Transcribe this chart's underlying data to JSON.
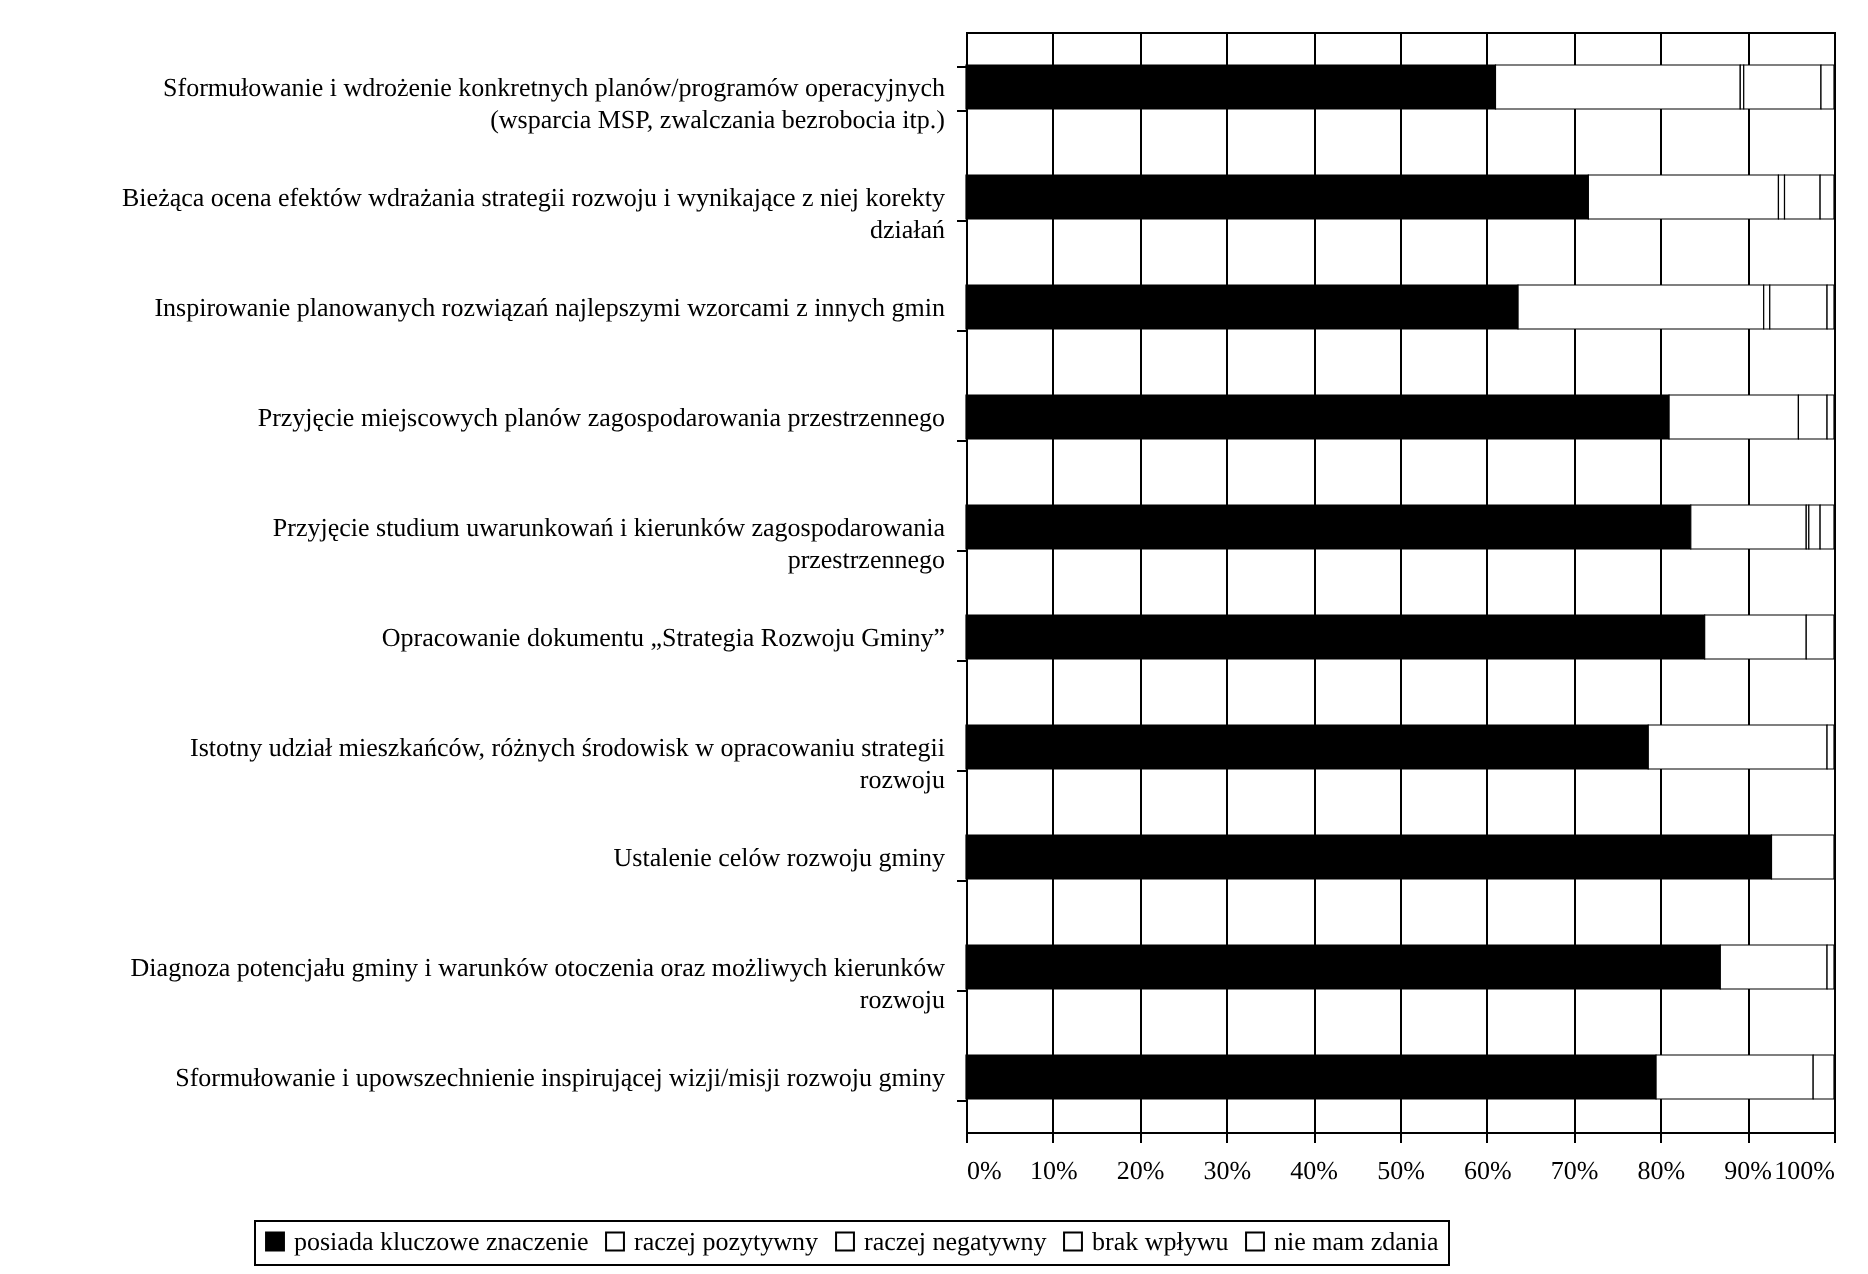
{
  "chart_data": {
    "type": "bar",
    "orientation": "horizontal",
    "stacked": true,
    "categories": [
      "Sformułowanie i wdrożenie  konkretnych planów/programów operacyjnych (wsparcia MSP, zwalczania bezrobocia itp.)",
      "Bieżąca ocena efektów wdrażania strategii rozwoju i wynikające z niej korekty działań",
      "Inspirowanie planowanych rozwiązań najlepszymi wzorcami z innych gmin",
      "Przyjęcie miejscowych planów zagospodarowania przestrzennego",
      "Przyjęcie studium uwarunkowań i kierunków zagospodarowania przestrzennego",
      "Opracowanie dokumentu „Strategia Rozwoju Gminy”",
      "Istotny udział mieszkańców, różnych środowisk w opracowaniu strategii rozwoju",
      "Ustalenie celów rozwoju gminy",
      "Diagnoza potencjału gminy i warunków otoczenia oraz możliwych kierunków rozwoju",
      "Sformułowanie i upowszechnienie inspirującej wizji/misji rozwoju gminy"
    ],
    "series": [
      {
        "name": "posiada kluczowe znaczenie",
        "color": "#000000",
        "values": [
          61.0,
          71.7,
          63.6,
          81.0,
          83.5,
          85.1,
          78.6,
          92.8,
          86.9,
          79.5
        ]
      },
      {
        "name": "raczej pozytywny",
        "color": "#ffffff",
        "values": [
          28.2,
          21.9,
          28.3,
          14.9,
          13.3,
          11.7,
          20.6,
          7.2,
          12.3,
          18.1
        ]
      },
      {
        "name": "raczej negatywny",
        "color": "#ffffff",
        "values": [
          0.4,
          0.7,
          0.7,
          0,
          0.3,
          0,
          0,
          0,
          0,
          0
        ]
      },
      {
        "name": "brak wpływu",
        "color": "#ffffff",
        "values": [
          8.9,
          4.1,
          6.6,
          3.3,
          1.3,
          3.2,
          0.8,
          0,
          0.8,
          2.4
        ]
      },
      {
        "name": "nie mam zdania",
        "color": "#ffffff",
        "values": [
          1.5,
          1.6,
          0.8,
          0.8,
          1.6,
          0,
          0,
          0,
          0,
          0
        ]
      }
    ],
    "xlim": [
      0,
      100
    ],
    "xticks": [
      {
        "value": 0,
        "label": "0%"
      },
      {
        "value": 10,
        "label": "10%"
      },
      {
        "value": 20,
        "label": "20%"
      },
      {
        "value": 30,
        "label": "30%"
      },
      {
        "value": 40,
        "label": "40%"
      },
      {
        "value": 50,
        "label": "50%"
      },
      {
        "value": 60,
        "label": "60%"
      },
      {
        "value": 70,
        "label": "70%"
      },
      {
        "value": 80,
        "label": "80%"
      },
      {
        "value": 90,
        "label": "90%"
      },
      {
        "value": 100,
        "label": "100%"
      }
    ],
    "grid": "x",
    "legend": "bottom"
  }
}
